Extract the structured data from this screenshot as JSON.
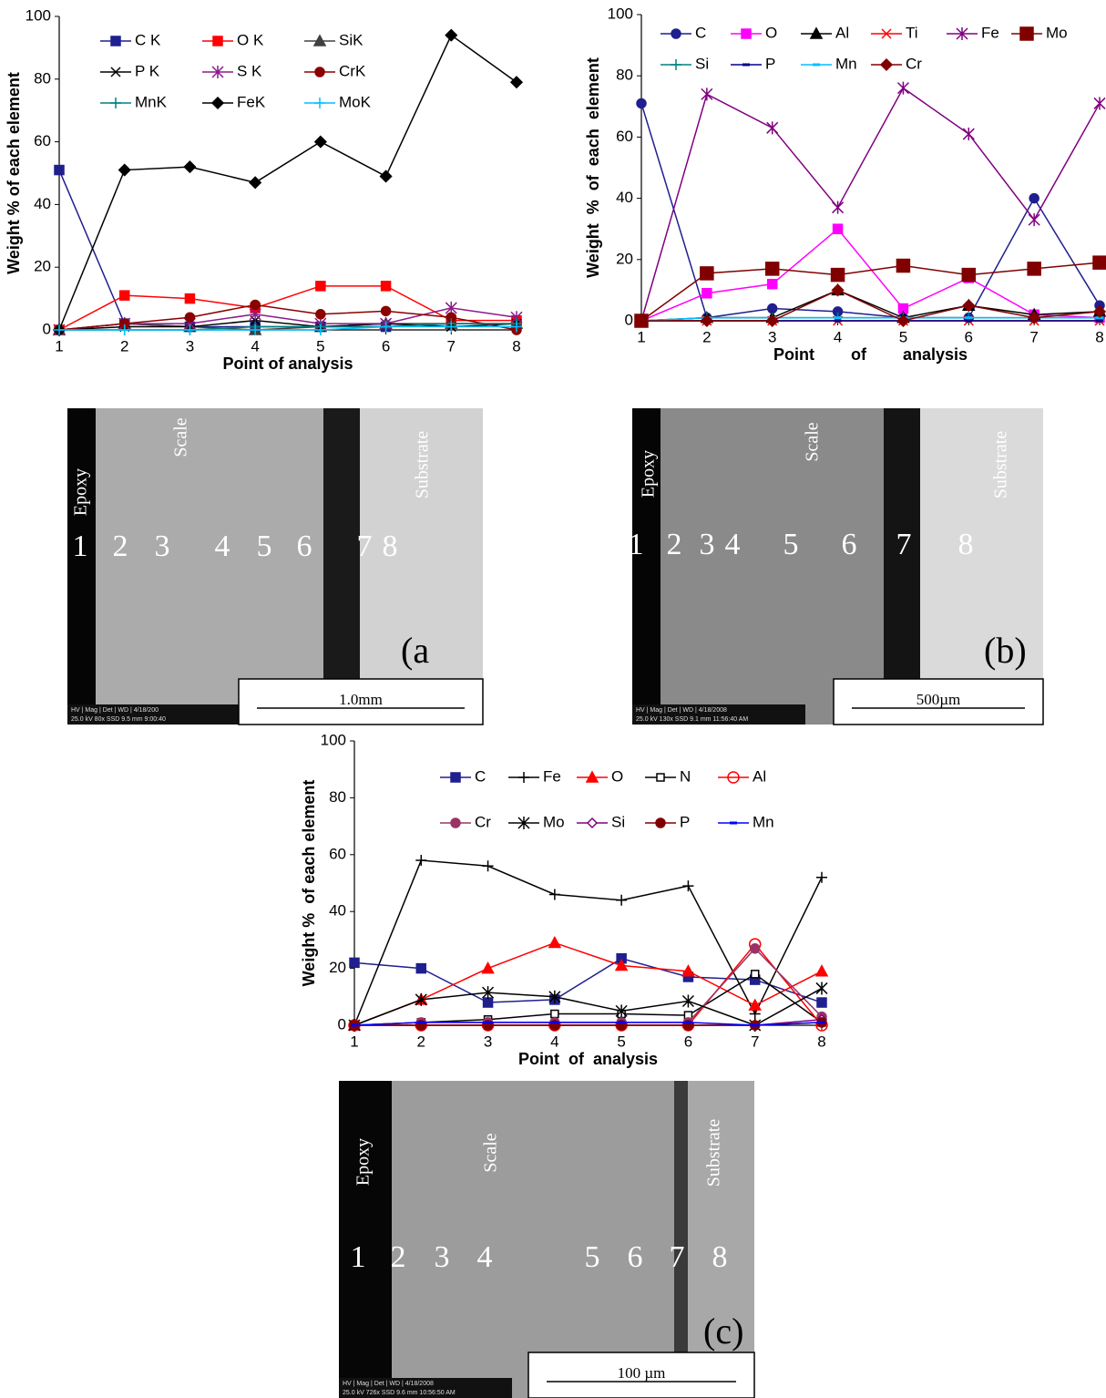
{
  "chart_data": [
    {
      "type": "line",
      "xlabel": "Point of analysis",
      "ylabel": "Weight % of each element",
      "x": [
        1,
        2,
        3,
        4,
        5,
        6,
        7,
        8
      ],
      "xlim": [
        1,
        8
      ],
      "xticks": [
        1,
        2,
        3,
        4,
        5,
        6,
        7,
        8
      ],
      "ylim": [
        0,
        100
      ],
      "yticks": [
        0,
        20,
        40,
        60,
        80,
        100
      ],
      "series": [
        {
          "name": "C K",
          "color": "#1f1f8f",
          "marker": "square",
          "values": [
            51,
            2,
            1,
            1,
            1,
            1,
            2,
            2
          ]
        },
        {
          "name": "O K",
          "color": "#ff0000",
          "marker": "square",
          "values": [
            0,
            11,
            10,
            7,
            14,
            14,
            3,
            3
          ]
        },
        {
          "name": "SiK",
          "color": "#404040",
          "marker": "triangle",
          "values": [
            0,
            2,
            1,
            0,
            1,
            2,
            2,
            2
          ]
        },
        {
          "name": "P K",
          "color": "#000000",
          "marker": "x",
          "values": [
            0,
            1,
            1,
            3,
            1,
            2,
            1,
            2
          ]
        },
        {
          "name": "S K",
          "color": "#8b1a8b",
          "marker": "star",
          "values": [
            0,
            2,
            2,
            5,
            2,
            2,
            7,
            4
          ]
        },
        {
          "name": "CrK",
          "color": "#8b0000",
          "marker": "circle",
          "values": [
            0,
            2,
            4,
            8,
            5,
            6,
            4,
            0
          ]
        },
        {
          "name": "MnK",
          "color": "#008080",
          "marker": "plus",
          "values": [
            0,
            0,
            0,
            1,
            1,
            1,
            2,
            2
          ]
        },
        {
          "name": "FeK",
          "color": "#000000",
          "marker": "diamond",
          "values": [
            0,
            51,
            52,
            47,
            60,
            49,
            94,
            79
          ]
        },
        {
          "name": "MoK",
          "color": "#00bfff",
          "marker": "plus",
          "values": [
            0,
            0,
            0,
            0,
            0,
            1,
            1,
            1
          ]
        }
      ]
    },
    {
      "type": "line",
      "xlabel": "Point        of        analysis",
      "ylabel": "Weight  %  of  each  element",
      "x": [
        1,
        2,
        3,
        4,
        5,
        6,
        7,
        8
      ],
      "xlim": [
        1,
        8
      ],
      "xticks": [
        1,
        2,
        3,
        4,
        5,
        6,
        7,
        8
      ],
      "ylim": [
        0,
        100
      ],
      "yticks": [
        0,
        20,
        40,
        60,
        80,
        100
      ],
      "series": [
        {
          "name": "C",
          "color": "#1f1f8f",
          "marker": "circle",
          "values": [
            71,
            1,
            4,
            3,
            1,
            1,
            40,
            5
          ]
        },
        {
          "name": "O",
          "color": "#ff00ff",
          "marker": "square",
          "values": [
            0,
            9,
            12,
            30,
            4,
            14,
            2,
            1
          ]
        },
        {
          "name": "Al",
          "color": "#000000",
          "marker": "triangle",
          "values": [
            0,
            1,
            1,
            10,
            1,
            5,
            2,
            3
          ]
        },
        {
          "name": "Ti",
          "color": "#ff0000",
          "marker": "x",
          "values": [
            0,
            0,
            0,
            0,
            0,
            0,
            0,
            0
          ]
        },
        {
          "name": "Fe",
          "color": "#800080",
          "marker": "star",
          "values": [
            0,
            74,
            63,
            37,
            76,
            61,
            33,
            71
          ]
        },
        {
          "name": "Mo",
          "color": "#800000",
          "marker": "bigsquare",
          "values": [
            0,
            15.5,
            17,
            15,
            18,
            15,
            17,
            19
          ]
        },
        {
          "name": "Si",
          "color": "#008080",
          "marker": "plus",
          "values": [
            0,
            1,
            1,
            1,
            1,
            1,
            1,
            1
          ]
        },
        {
          "name": "P",
          "color": "#00008b",
          "marker": "dash",
          "values": [
            0,
            0,
            0,
            0,
            0,
            0,
            0,
            0
          ]
        },
        {
          "name": "Mn",
          "color": "#00bfff",
          "marker": "dash",
          "values": [
            0,
            1,
            1,
            1,
            1,
            1,
            1,
            1
          ]
        },
        {
          "name": "Cr",
          "color": "#800000",
          "marker": "diamond",
          "values": [
            0,
            0,
            0,
            10,
            0,
            5,
            1,
            3
          ]
        }
      ]
    },
    {
      "type": "line",
      "xlabel": "Point  of  analysis",
      "ylabel": "Weight %  of each element",
      "x": [
        1,
        2,
        3,
        4,
        5,
        6,
        7,
        8
      ],
      "xlim": [
        1,
        8
      ],
      "xticks": [
        1,
        2,
        3,
        4,
        5,
        6,
        7,
        8
      ],
      "ylim": [
        0,
        100
      ],
      "yticks": [
        0,
        20,
        40,
        60,
        80,
        100
      ],
      "series": [
        {
          "name": "C",
          "color": "#1f1f8f",
          "marker": "square",
          "values": [
            22,
            20,
            8,
            9,
            23.5,
            17,
            16,
            8
          ]
        },
        {
          "name": "Fe",
          "color": "#000000",
          "marker": "plus",
          "values": [
            0,
            58,
            56,
            46,
            44,
            49,
            4,
            52
          ]
        },
        {
          "name": "O",
          "color": "#ff0000",
          "marker": "triangle",
          "values": [
            0,
            9,
            20,
            29,
            21,
            19,
            7,
            19
          ]
        },
        {
          "name": "N",
          "color": "#000000",
          "marker": "opensquare",
          "values": [
            0,
            1,
            2,
            4,
            4,
            3.5,
            18,
            1
          ]
        },
        {
          "name": "Al",
          "color": "#ff0000",
          "marker": "opencircle",
          "values": [
            0,
            0,
            0,
            0,
            0,
            0,
            28.5,
            0
          ]
        },
        {
          "name": "Cr",
          "color": "#993366",
          "marker": "circle",
          "values": [
            0,
            1,
            1,
            1,
            1,
            1,
            27,
            3
          ]
        },
        {
          "name": "Mo",
          "color": "#000000",
          "marker": "star",
          "values": [
            0,
            9,
            11.5,
            10,
            5,
            8.5,
            0,
            13
          ]
        },
        {
          "name": "Si",
          "color": "#800080",
          "marker": "opendiamond",
          "values": [
            0,
            0,
            0,
            0,
            0,
            0,
            0,
            2
          ]
        },
        {
          "name": "P",
          "color": "#800000",
          "marker": "circle",
          "values": [
            0,
            0,
            0,
            0,
            0,
            0,
            0,
            1
          ]
        },
        {
          "name": "Mn",
          "color": "#0000ff",
          "marker": "dash",
          "values": [
            0,
            1,
            1,
            1,
            1,
            1,
            0,
            1
          ]
        }
      ]
    }
  ],
  "micrographs": [
    {
      "panel": "(a",
      "epoxy": "Epoxy",
      "scale": "Scale",
      "substrate": "Substrate",
      "points": [
        "1",
        "2",
        "3",
        "4",
        "5",
        "6",
        "7",
        "8"
      ],
      "scale_bar": "1.0mm",
      "info": [
        "HV | Mag | Det | WD | 4/18/200",
        "25.0 kV 80x SSD 9.5 mm 9:00:40"
      ]
    },
    {
      "panel": "(b)",
      "epoxy": "Epoxy",
      "scale": "Scale",
      "substrate": "Substrate",
      "points": [
        "1",
        "2",
        "3",
        "4",
        "5",
        "6",
        "7",
        "8"
      ],
      "scale_bar": "500µm",
      "info": [
        "HV | Mag | Det | WD | 4/18/2008",
        "25.0 kV 130x SSD 9.1 mm 11:56:40 AM"
      ]
    },
    {
      "panel": "(c)",
      "epoxy": "Epoxy",
      "scale": "Scale",
      "substrate": "Substrate",
      "points": [
        "1",
        "2",
        "3",
        "4",
        "5",
        "6",
        "7",
        "8"
      ],
      "scale_bar": "100 µm",
      "info": [
        "HV | Mag | Det | WD | 4/18/2008",
        "25.0 kV 726x SSD 9.6 mm 10:56:50 AM"
      ]
    }
  ]
}
